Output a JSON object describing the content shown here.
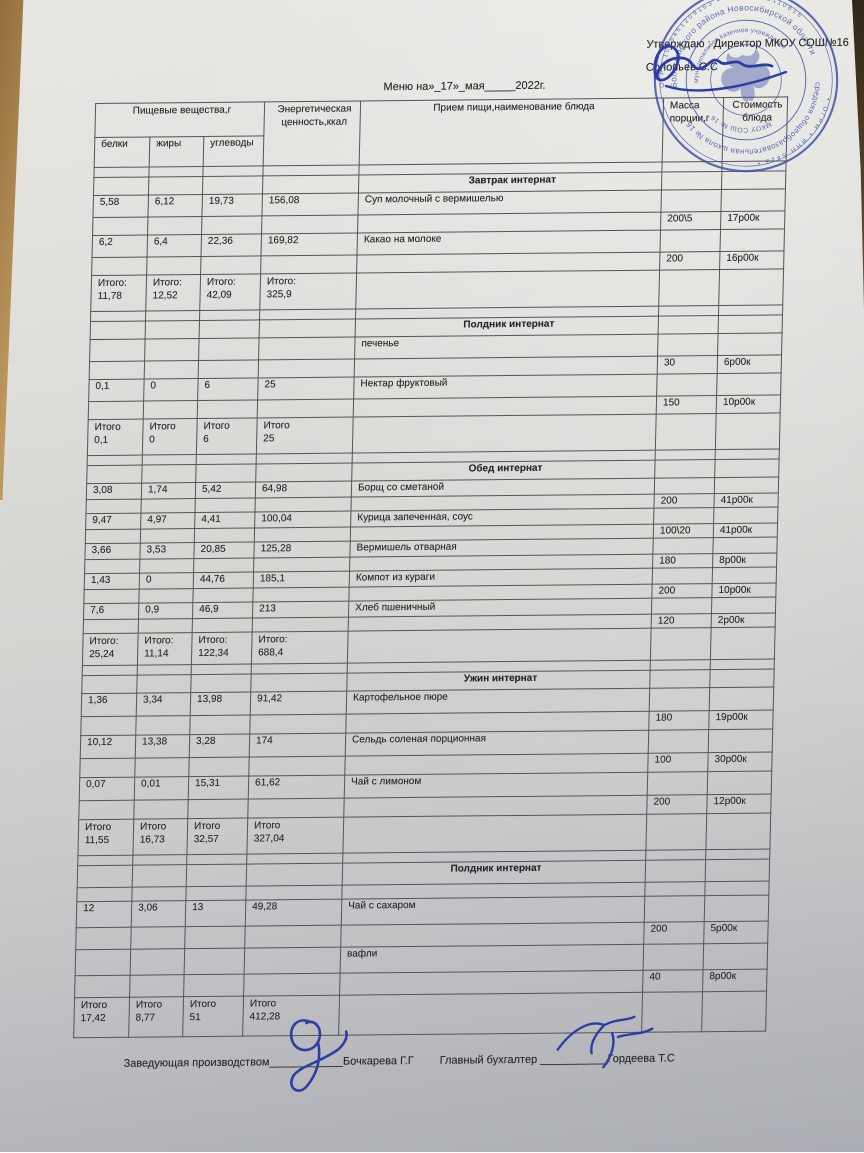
{
  "approval": {
    "line1": "Утверждаю :  Директор МКОУ СОШ№16",
    "line2": "Соловьев С.С"
  },
  "title": "Меню на»_17»_мая_____2022г.",
  "stamp": {
    "ring_outer_top": "ОГРН 1025461209163 • ИНН 5413110816",
    "ring_outer_bottom": "• ОГРН • ИНН 5413 •",
    "ring_mid_top": "Болотнинского района Новосибирской области",
    "ring_mid_bottom": "средняя общеобразовательная школа № 16",
    "ring_inner_top": "муниципальное казенное учреждение",
    "ring_inner_bottom": "МКОУ СОШ № 16",
    "color": "#3c4ea6"
  },
  "table": {
    "header": {
      "nutrients_group": "Пищевые вещества,г",
      "protein": "белки",
      "fat": "жиры",
      "carbs": "углеводы",
      "energy": "Энергетическая ценность,ккал",
      "meal": "Прием пищи,наименование блюда",
      "mass": "Масса порции,г",
      "cost": "Стоимость блюда"
    },
    "sections": [
      {
        "title": "Завтрак интернат",
        "rows": [
          {
            "prot": "5,58",
            "fat": "6,12",
            "carb": "19,73",
            "kcal": "156,08",
            "dish": "Суп молочный с вермишелью",
            "mass": "200\\5",
            "cost": "17р00к"
          },
          {
            "prot": "6,2",
            "fat": "6,4",
            "carb": "22,36",
            "kcal": "169,82",
            "dish": "Какао на молоке",
            "mass": "200",
            "cost": "16р00к"
          }
        ],
        "total_label": "Итого:",
        "total": {
          "prot": "11,78",
          "fat": "12,52",
          "carb": "42,09",
          "kcal": "325,9"
        }
      },
      {
        "title": "Полдник интернат",
        "rows": [
          {
            "dish": "печенье",
            "mass": "30",
            "cost": "6р00к"
          },
          {
            "prot": "0,1",
            "fat": "0",
            "carb": "6",
            "kcal": "25",
            "dish": "Нектар фруктовый",
            "mass": "150",
            "cost": "10р00к"
          }
        ],
        "total_label": "Итого",
        "total": {
          "prot": "0,1",
          "fat": "0",
          "carb": "6",
          "kcal": "25"
        }
      },
      {
        "title": "Обед интернат",
        "rows": [
          {
            "prot": "3,08",
            "fat": "1,74",
            "carb": "5,42",
            "kcal": "64,98",
            "dish": "Борщ со сметаной",
            "mass": "200",
            "cost": "41р00к"
          },
          {
            "prot": "9,47",
            "fat": "4,97",
            "carb": "4,41",
            "kcal": "100,04",
            "dish": "Курица запеченная, соус",
            "mass": "100\\20",
            "cost": "41р00к"
          },
          {
            "prot": "3,66",
            "fat": "3,53",
            "carb": "20,85",
            "kcal": "125,28",
            "dish": "Вермишель отварная",
            "mass": "180",
            "cost": "8р00к"
          },
          {
            "prot": "1,43",
            "fat": "0",
            "carb": "44,76",
            "kcal": "185,1",
            "dish": "Компот из кураги",
            "mass": "200",
            "cost": "10р00к"
          },
          {
            "prot": "7,6",
            "fat": "0,9",
            "carb": "46,9",
            "kcal": "213",
            "dish": "Хлеб пшеничный",
            "mass": "120",
            "cost": "2р00к"
          }
        ],
        "total_label": "Итого:",
        "total": {
          "prot": "25,24",
          "fat": "11,14",
          "carb": "122,34",
          "kcal": "688,4"
        }
      },
      {
        "title": "Ужин интернат",
        "rows": [
          {
            "prot": "1,36",
            "fat": "3,34",
            "carb": "13,98",
            "kcal": "91,42",
            "dish": "Картофельное пюре",
            "mass": "180",
            "cost": "19р00к"
          },
          {
            "prot": "10,12",
            "fat": "13,38",
            "carb": "3,28",
            "kcal": "174",
            "dish": "Сельдь соленая порционная",
            "mass": "100",
            "cost": "30р00к"
          },
          {
            "prot": "0,07",
            "fat": "0,01",
            "carb": "15,31",
            "kcal": "61,62",
            "dish": "Чай с лимоном",
            "mass": "200",
            "cost": "12р00к"
          }
        ],
        "total_label": "Итого",
        "total": {
          "prot": "11,55",
          "fat": "16,73",
          "carb": "32,57",
          "kcal": "327,04"
        }
      },
      {
        "title": "Полдник интернат",
        "rows": [
          {
            "prot": "12",
            "fat": "3,06",
            "carb": "13",
            "kcal": "49,28",
            "dish": "Чай с сахаром",
            "mass": "200",
            "cost": "5р00к"
          },
          {
            "dish": "вафли",
            "mass": "40",
            "cost": "8р00к"
          }
        ],
        "total_label": "Итого",
        "total": {
          "prot": "17,42",
          "fat": "8,77",
          "carb": "51",
          "kcal": "412,28"
        }
      }
    ]
  },
  "footer": {
    "left_label": "Заведующая производством",
    "left_line": "____________",
    "left_name": "Бочкарева Г.Г",
    "right_label": "Главный бухгалтер",
    "right_line": "___________",
    "right_name": "Гордеева Т.С"
  }
}
